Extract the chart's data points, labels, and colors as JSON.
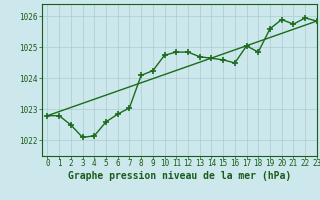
{
  "title": "Graphe pression niveau de la mer (hPa)",
  "xlim": [
    -0.5,
    23
  ],
  "ylim": [
    1021.5,
    1026.4
  ],
  "yticks": [
    1022,
    1023,
    1024,
    1025,
    1026
  ],
  "xticks": [
    0,
    1,
    2,
    3,
    4,
    5,
    6,
    7,
    8,
    9,
    10,
    11,
    12,
    13,
    14,
    15,
    16,
    17,
    18,
    19,
    20,
    21,
    22,
    23
  ],
  "bg_color": "#cce8ec",
  "grid_color": "#aacccc",
  "line_color": "#1a6b1a",
  "line1_x": [
    0,
    1,
    2,
    3,
    4,
    5,
    6,
    7,
    8,
    9,
    10,
    11,
    12,
    13,
    14,
    15,
    16,
    17,
    18,
    19,
    20,
    21,
    22,
    23
  ],
  "line1_y": [
    1022.8,
    1022.8,
    1022.5,
    1022.1,
    1022.15,
    1022.6,
    1022.85,
    1023.05,
    1024.1,
    1024.25,
    1024.75,
    1024.85,
    1024.85,
    1024.7,
    1024.65,
    1024.6,
    1024.5,
    1025.05,
    1024.85,
    1025.6,
    1025.9,
    1025.75,
    1025.95,
    1025.85
  ],
  "line2_x": [
    0,
    23
  ],
  "line2_y": [
    1022.8,
    1025.85
  ],
  "marker": "+",
  "marker_size": 4,
  "marker_lw": 1.2,
  "line_width": 1.0,
  "title_fontsize": 7,
  "tick_fontsize": 5.5,
  "title_color": "#1a5c1a",
  "tick_color": "#1a5c1a",
  "spine_color": "#1a5c1a"
}
